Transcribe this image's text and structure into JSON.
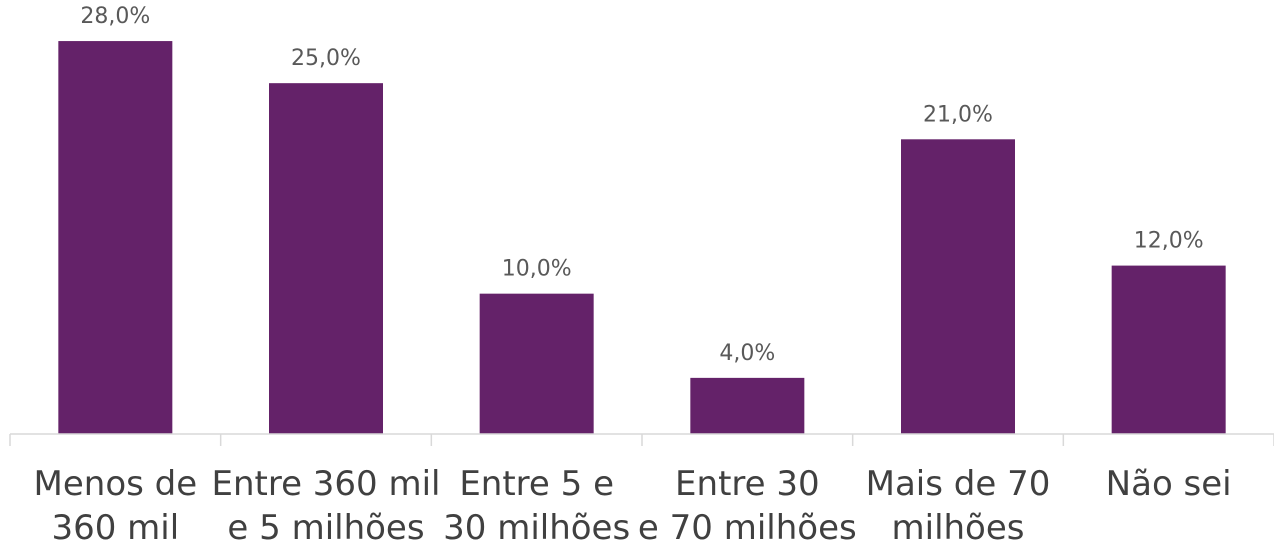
{
  "chart_data": {
    "type": "bar",
    "categories": [
      [
        "Menos de",
        "360 mil"
      ],
      [
        "Entre 360 mil",
        "e 5 milhões"
      ],
      [
        "Entre 5 e",
        "30 milhões"
      ],
      [
        "Entre 30",
        "e 70 milhões"
      ],
      [
        "Mais de 70",
        "milhões"
      ],
      [
        "Não sei"
      ]
    ],
    "values": [
      28.0,
      25.0,
      10.0,
      4.0,
      21.0,
      12.0
    ],
    "value_labels": [
      "28,0%",
      "25,0%",
      "10,0%",
      "4,0%",
      "21,0%",
      "12,0%"
    ],
    "ylim": [
      0,
      30
    ],
    "grid": false,
    "legend": "none",
    "colors": {
      "bar": "#642269",
      "axis": "#d9d9d9"
    }
  }
}
